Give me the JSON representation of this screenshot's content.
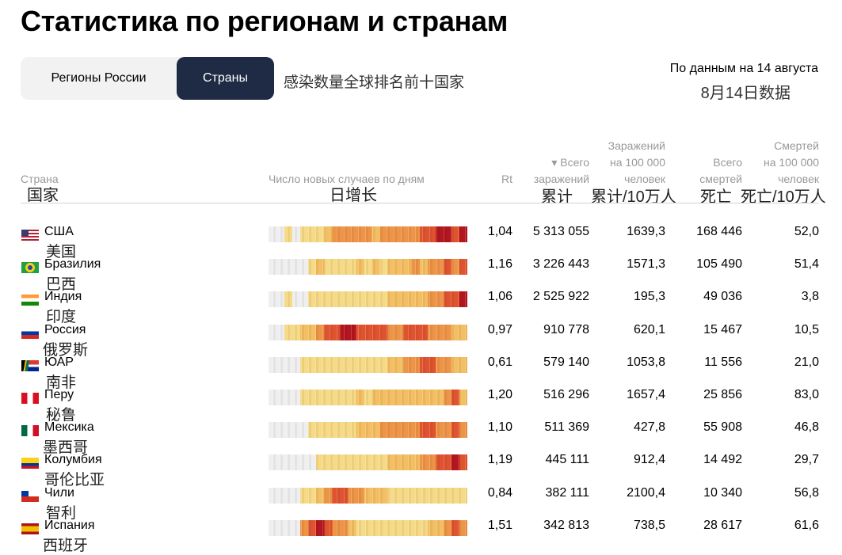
{
  "title": "Статистика по регионам и странам",
  "tabs": [
    {
      "label": "Регионы России",
      "active": false
    },
    {
      "label": "Страны",
      "active": true
    }
  ],
  "note": "感染数量全球排名前十国家",
  "date": "По данным на 14 августа",
  "date_zh": "8月14日数据",
  "headers": {
    "country": "Страна",
    "country_zh": "国家",
    "daily": "Число новых случаев по дням",
    "daily_zh": "日增长",
    "rt": "Rt",
    "total": [
      "▾ Всего",
      "заражений"
    ],
    "total_zh": "累计",
    "per100k": [
      "Заражений",
      "на 100 000",
      "человек"
    ],
    "per100k_zh": "累计/10万人",
    "deaths": [
      "Всего",
      "смертей"
    ],
    "deaths_zh": "死亡",
    "deaths100k": [
      "Смертей",
      "на 100 000",
      "человек"
    ],
    "deaths100k_zh": "死亡/10万人"
  },
  "colors": [
    "#efefef",
    "#f7da86",
    "#f4bf62",
    "#ee9447",
    "#e0532f",
    "#b3161f"
  ],
  "rows": [
    {
      "name": "США",
      "zh": "美国",
      "flag": "us",
      "rt": "1,04",
      "total": "5 313 055",
      "per100k": "1639,3",
      "deaths": "168 446",
      "deaths100k": "52,0",
      "strip": [
        0,
        0,
        1,
        0,
        1,
        1,
        1,
        2,
        3,
        3,
        3,
        3,
        3,
        2,
        3,
        3,
        3,
        3,
        3,
        4,
        4,
        5,
        5,
        4,
        5
      ]
    },
    {
      "name": "Бразилия",
      "zh": "巴西",
      "flag": "br",
      "rt": "1,16",
      "total": "3 226 443",
      "per100k": "1571,3",
      "deaths": "105 490",
      "deaths100k": "51,4",
      "strip": [
        0,
        0,
        0,
        0,
        0,
        1,
        2,
        1,
        1,
        1,
        1,
        2,
        1,
        2,
        1,
        2,
        2,
        2,
        3,
        2,
        3,
        3,
        4,
        3,
        4
      ]
    },
    {
      "name": "Индия",
      "zh": "印度",
      "flag": "in",
      "rt": "1,06",
      "total": "2 525 922",
      "per100k": "195,3",
      "deaths": "49 036",
      "deaths100k": "3,8",
      "strip": [
        0,
        0,
        1,
        0,
        0,
        1,
        1,
        1,
        1,
        1,
        1,
        1,
        1,
        1,
        1,
        2,
        2,
        2,
        2,
        2,
        3,
        3,
        4,
        4,
        5
      ]
    },
    {
      "name": "Россия",
      "zh": "俄罗斯",
      "flag": "ru",
      "rt": "0,97",
      "total": "910 778",
      "per100k": "620,1",
      "deaths": "15 467",
      "deaths100k": "10,5",
      "strip": [
        0,
        0,
        1,
        1,
        2,
        2,
        3,
        4,
        4,
        5,
        5,
        4,
        4,
        4,
        4,
        3,
        3,
        4,
        4,
        4,
        3,
        3,
        3,
        2,
        2
      ]
    },
    {
      "name": "ЮАР",
      "zh": "南非",
      "flag": "za",
      "rt": "0,61",
      "total": "579 140",
      "per100k": "1053,8",
      "deaths": "11 556",
      "deaths100k": "21,0",
      "strip": [
        0,
        0,
        0,
        0,
        1,
        1,
        1,
        1,
        1,
        1,
        1,
        1,
        1,
        1,
        1,
        2,
        2,
        3,
        3,
        4,
        4,
        3,
        3,
        2,
        2
      ]
    },
    {
      "name": "Перу",
      "zh": "秘鲁",
      "flag": "pe",
      "rt": "1,20",
      "total": "516 296",
      "per100k": "1657,4",
      "deaths": "25 856",
      "deaths100k": "83,0",
      "strip": [
        0,
        0,
        0,
        0,
        1,
        1,
        1,
        1,
        1,
        1,
        1,
        2,
        1,
        2,
        2,
        2,
        2,
        2,
        2,
        2,
        2,
        2,
        3,
        4,
        2
      ]
    },
    {
      "name": "Мексика",
      "zh": "墨西哥",
      "flag": "mx",
      "rt": "1,10",
      "total": "511 369",
      "per100k": "427,8",
      "deaths": "55 908",
      "deaths100k": "46,8",
      "strip": [
        0,
        0,
        0,
        0,
        0,
        1,
        1,
        1,
        1,
        1,
        1,
        2,
        2,
        2,
        3,
        3,
        3,
        3,
        3,
        4,
        4,
        3,
        3,
        4,
        3
      ]
    },
    {
      "name": "Колумбия",
      "zh": "哥伦比亚",
      "flag": "co",
      "rt": "1,19",
      "total": "445 111",
      "per100k": "912,4",
      "deaths": "14 492",
      "deaths100k": "29,7",
      "strip": [
        0,
        0,
        0,
        0,
        0,
        0,
        1,
        1,
        1,
        1,
        1,
        1,
        1,
        1,
        1,
        2,
        2,
        2,
        2,
        3,
        3,
        4,
        4,
        5,
        4
      ]
    },
    {
      "name": "Чили",
      "zh": "智利",
      "flag": "cl",
      "rt": "0,84",
      "total": "382 111",
      "per100k": "2100,4",
      "deaths": "10 340",
      "deaths100k": "56,8",
      "strip": [
        0,
        0,
        0,
        0,
        1,
        1,
        2,
        3,
        4,
        4,
        3,
        3,
        2,
        2,
        2,
        1,
        1,
        1,
        1,
        1,
        1,
        1,
        1,
        1,
        1
      ]
    },
    {
      "name": "Испания",
      "zh": "西班牙",
      "flag": "es",
      "rt": "1,51",
      "total": "342 813",
      "per100k": "738,5",
      "deaths": "28 617",
      "deaths100k": "61,6",
      "strip": [
        0,
        0,
        0,
        0,
        3,
        4,
        5,
        4,
        3,
        3,
        2,
        1,
        1,
        1,
        1,
        1,
        1,
        1,
        1,
        1,
        2,
        2,
        3,
        4,
        3
      ]
    }
  ]
}
